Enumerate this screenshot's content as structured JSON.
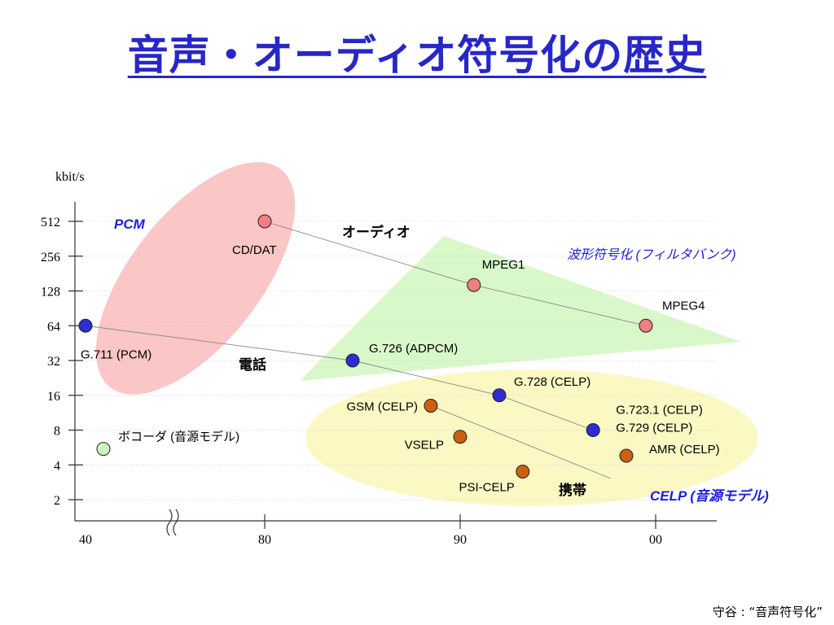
{
  "title": "音声・オーディオ符号化の歴史",
  "source_note": "守谷 : “音声符号化”",
  "chart_data": {
    "type": "scatter",
    "ylabel": "kbit/s",
    "y_scale": "log2",
    "y_ticks": [
      512,
      256,
      128,
      64,
      32,
      16,
      8,
      4,
      2
    ],
    "x_ticks": [
      "40",
      "80",
      "90",
      "00"
    ],
    "axis_break": "x-axis break between 40 and 80",
    "grid": true,
    "points": [
      {
        "label": "CD/DAT",
        "year": 1980,
        "kbps": 512,
        "color": "#f07f82",
        "group": "audio"
      },
      {
        "label": "MPEG1",
        "year": 1990.7,
        "kbps": 144,
        "color": "#f07f82",
        "group": "audio"
      },
      {
        "label": "MPEG4",
        "year": 1999.5,
        "kbps": 64,
        "color": "#f07f82",
        "group": "audio"
      },
      {
        "label": "G.711 (PCM)",
        "year": 1940,
        "kbps": 64,
        "color": "#2d2dd0",
        "group": "phone"
      },
      {
        "label": "G.726 (ADPCM)",
        "year": 1984.5,
        "kbps": 32,
        "color": "#2d2dd0",
        "group": "phone"
      },
      {
        "label": "G.728 (CELP)",
        "year": 1992,
        "kbps": 16,
        "color": "#2d2dd0",
        "group": "phone"
      },
      {
        "label": "G.723.1 (CELP)\nG.729 (CELP)",
        "year": 1996.8,
        "kbps": 8,
        "color": "#2d2dd0",
        "group": "phone"
      },
      {
        "label": "ボコーダ (音源モデル)",
        "year": 1941,
        "kbps": 5.5,
        "color": "#c8f5c0",
        "group": "vocoder"
      },
      {
        "label": "GSM (CELP)",
        "year": 1988.5,
        "kbps": 13,
        "color": "#cc5f10",
        "group": "mobile"
      },
      {
        "label": "VSELP",
        "year": 1990,
        "kbps": 7,
        "color": "#cc5f10",
        "group": "mobile"
      },
      {
        "label": "PSI-CELP",
        "year": 1993.2,
        "kbps": 3.5,
        "color": "#cc5f10",
        "group": "mobile"
      },
      {
        "label": "AMR (CELP)",
        "year": 1998.5,
        "kbps": 4.8,
        "color": "#cc5f10",
        "group": "mobile"
      }
    ],
    "group_labels": {
      "pcm": "PCM",
      "audio": "オーディオ",
      "waveform": "波形符号化 (フィルタバンク)",
      "phone": "電話",
      "mobile": "携帯",
      "celp": "CELP (音源モデル)"
    },
    "region_colors": {
      "pcm": "#f9c0c0",
      "waveform": "#d4f7c4",
      "celp": "#fbf8c0"
    }
  }
}
